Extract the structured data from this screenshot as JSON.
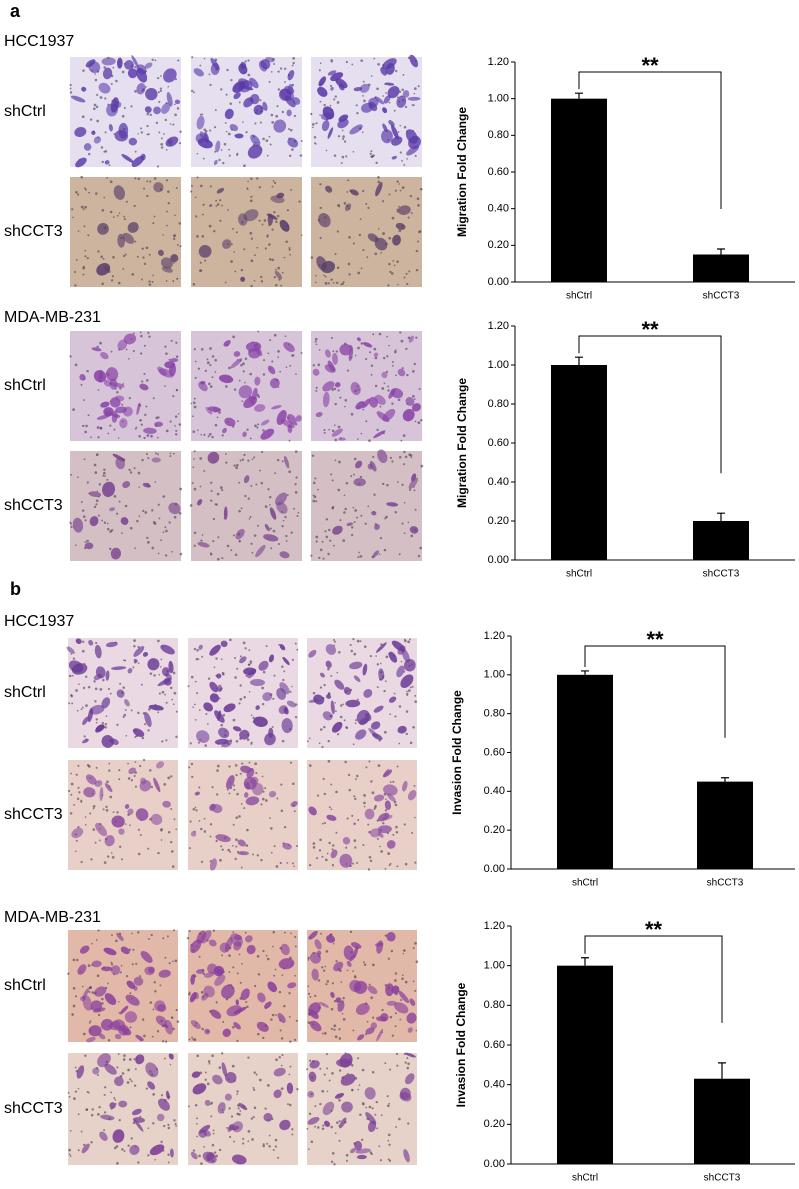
{
  "panels": [
    {
      "label": "a",
      "groups": [
        {
          "cell_line": "HCC1937",
          "rows": [
            "shCtrl",
            "shCCT3"
          ]
        },
        {
          "cell_line": "MDA-MB-231",
          "rows": [
            "shCtrl",
            "shCCT3"
          ]
        }
      ]
    },
    {
      "label": "b",
      "groups": [
        {
          "cell_line": "HCC1937",
          "rows": [
            "shCtrl",
            "shCCT3"
          ]
        },
        {
          "cell_line": "MDA-MB-231",
          "rows": [
            "shCtrl",
            "shCCT3"
          ]
        }
      ]
    }
  ],
  "chart_data": [
    {
      "type": "bar",
      "y_label": "Migration Fold Change",
      "categories": [
        "shCtrl",
        "shCCT3"
      ],
      "values": [
        1.0,
        0.15
      ],
      "errors": [
        0.03,
        0.03
      ],
      "color": "#000000",
      "annotation": "**",
      "ylim": [
        0,
        1.2
      ],
      "yticks": [
        {
          "value": 0,
          "label": "0.00"
        },
        {
          "value": 0.2,
          "label": "0.20"
        },
        {
          "value": 0.4,
          "label": "0.40"
        },
        {
          "value": 0.6,
          "label": "0.60"
        },
        {
          "value": 0.8,
          "label": "0.80"
        },
        {
          "value": 1.0,
          "label": "1.00"
        },
        {
          "value": 1.2,
          "label": "1.20"
        }
      ]
    },
    {
      "type": "bar",
      "y_label": "Migration Fold Change",
      "categories": [
        "shCtrl",
        "shCCT3"
      ],
      "values": [
        1.0,
        0.2
      ],
      "errors": [
        0.04,
        0.04
      ],
      "color": "#000000",
      "annotation": "**",
      "ylim": [
        0,
        1.2
      ],
      "yticks": [
        {
          "value": 0,
          "label": "0.00"
        },
        {
          "value": 0.2,
          "label": "0.20"
        },
        {
          "value": 0.4,
          "label": "0.40"
        },
        {
          "value": 0.6,
          "label": "0.60"
        },
        {
          "value": 0.8,
          "label": "0.80"
        },
        {
          "value": 1.0,
          "label": "1.00"
        },
        {
          "value": 1.2,
          "label": "1.20"
        }
      ]
    },
    {
      "type": "bar",
      "y_label": "Invasion Fold Change",
      "categories": [
        "shCtrl",
        "shCCT3"
      ],
      "values": [
        1.0,
        0.45
      ],
      "errors": [
        0.02,
        0.02
      ],
      "color": "#000000",
      "annotation": "**",
      "ylim": [
        0,
        1.2
      ],
      "yticks": [
        {
          "value": 0,
          "label": "0.00"
        },
        {
          "value": 0.2,
          "label": "0.20"
        },
        {
          "value": 0.4,
          "label": "0.40"
        },
        {
          "value": 0.6,
          "label": "0.60"
        },
        {
          "value": 0.8,
          "label": "0.80"
        },
        {
          "value": 1.0,
          "label": "1.00"
        },
        {
          "value": 1.2,
          "label": "1.20"
        }
      ]
    },
    {
      "type": "bar",
      "y_label": "Invasion Fold Change",
      "categories": [
        "shCtrl",
        "shCCT3"
      ],
      "values": [
        1.0,
        0.43
      ],
      "errors": [
        0.04,
        0.08
      ],
      "color": "#000000",
      "annotation": "**",
      "ylim": [
        0,
        1.2
      ],
      "yticks": [
        {
          "value": 0,
          "label": "0.00"
        },
        {
          "value": 0.2,
          "label": "0.20"
        },
        {
          "value": 0.4,
          "label": "0.40"
        },
        {
          "value": 0.6,
          "label": "0.60"
        },
        {
          "value": 0.8,
          "label": "0.80"
        },
        {
          "value": 1.0,
          "label": "1.00"
        },
        {
          "value": 1.2,
          "label": "1.20"
        }
      ]
    }
  ]
}
